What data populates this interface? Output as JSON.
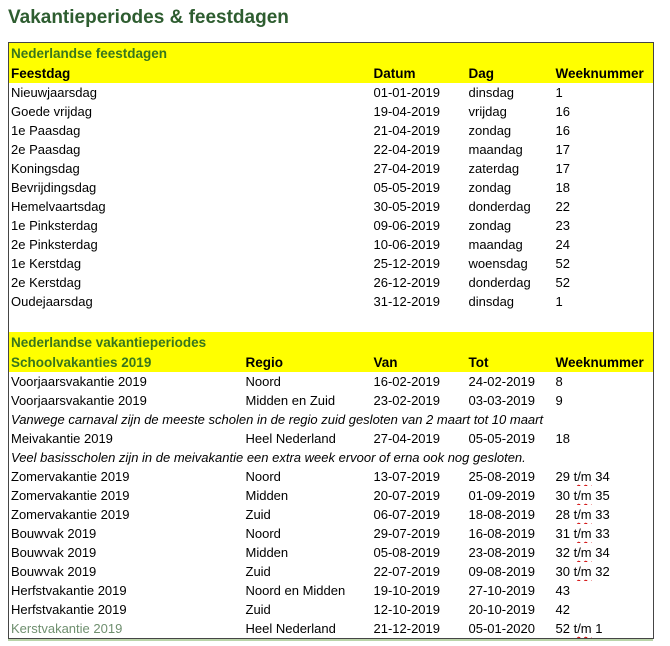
{
  "page_title": "Vakantieperiodes & feestdagen",
  "colors": {
    "title_green": "#2e5d30",
    "section_header_green": "#38761d",
    "header_fill_yellow": "#ffff00",
    "kerstvakantie_text_green": "#6f8f6f",
    "spellcheck_red": "#d00000",
    "table_border": "#454545"
  },
  "feestdagen": {
    "section_title": "Nederlandse feestdagen",
    "headers": {
      "col1": "Feestdag",
      "col2": "Datum",
      "col3": "Dag",
      "col4": "Weeknummer"
    },
    "rows": [
      {
        "feestdag": "Nieuwjaarsdag",
        "datum": "01-01-2019",
        "dag": "dinsdag",
        "week": "1"
      },
      {
        "feestdag": "Goede vrijdag",
        "datum": "19-04-2019",
        "dag": "vrijdag",
        "week": "16"
      },
      {
        "feestdag": "1e Paasdag",
        "datum": "21-04-2019",
        "dag": "zondag",
        "week": "16"
      },
      {
        "feestdag": "2e Paasdag",
        "datum": "22-04-2019",
        "dag": "maandag",
        "week": "17"
      },
      {
        "feestdag": "Koningsdag",
        "datum": "27-04-2019",
        "dag": "zaterdag",
        "week": "17"
      },
      {
        "feestdag": "Bevrijdingsdag",
        "datum": "05-05-2019",
        "dag": "zondag",
        "week": "18"
      },
      {
        "feestdag": "Hemelvaartsdag",
        "datum": "30-05-2019",
        "dag": "donderdag",
        "week": "22"
      },
      {
        "feestdag": "1e Pinksterdag",
        "datum": "09-06-2019",
        "dag": "zondag",
        "week": "23"
      },
      {
        "feestdag": "2e Pinksterdag",
        "datum": "10-06-2019",
        "dag": "maandag",
        "week": "24"
      },
      {
        "feestdag": "1e Kerstdag",
        "datum": "25-12-2019",
        "dag": "woensdag",
        "week": "52"
      },
      {
        "feestdag": "2e Kerstdag",
        "datum": "26-12-2019",
        "dag": "donderdag",
        "week": "52"
      },
      {
        "feestdag": "Oudejaarsdag",
        "datum": "31-12-2019",
        "dag": "dinsdag",
        "week": "1"
      }
    ]
  },
  "vakanties": {
    "section_title": "Nederlandse vakantieperiodes",
    "headers": {
      "col1": "Schoolvakanties 2019",
      "col2": "Regio",
      "col3": "Van",
      "col4": "Tot",
      "col5": "Weeknummer"
    },
    "notes": {
      "carnaval": "Vanwege carnaval zijn de meeste scholen in de regio zuid gesloten van 2 maart tot 10 maart",
      "meivakantie": "Veel basisscholen zijn in de meivakantie een extra week ervoor of erna ook nog gesloten."
    },
    "rows": [
      {
        "naam": "Voorjaarsvakantie 2019",
        "regio": "Noord",
        "van": "16-02-2019",
        "tot": "24-02-2019",
        "week": "8"
      },
      {
        "naam": "Voorjaarsvakantie 2019",
        "regio": "Midden en Zuid",
        "van": "23-02-2019",
        "tot": "03-03-2019",
        "week": "9"
      },
      {
        "naam": "Meivakantie 2019",
        "regio": "Heel Nederland",
        "van": "27-04-2019",
        "tot": "05-05-2019",
        "week": "18"
      },
      {
        "naam": "Zomervakantie 2019",
        "regio": "Noord",
        "van": "13-07-2019",
        "tot": "25-08-2019",
        "week": "29 t/m 34"
      },
      {
        "naam": "Zomervakantie 2019",
        "regio": "Midden",
        "van": "20-07-2019",
        "tot": "01-09-2019",
        "week": "30 t/m 35"
      },
      {
        "naam": "Zomervakantie 2019",
        "regio": "Zuid",
        "van": "06-07-2019",
        "tot": "18-08-2019",
        "week": "28 t/m 33"
      },
      {
        "naam": "Bouwvak 2019",
        "regio": "Noord",
        "van": "29-07-2019",
        "tot": "16-08-2019",
        "week": "31 t/m 33"
      },
      {
        "naam": "Bouwvak 2019",
        "regio": "Midden",
        "van": "05-08-2019",
        "tot": "23-08-2019",
        "week": "32 t/m 34"
      },
      {
        "naam": "Bouwvak 2019",
        "regio": "Zuid",
        "van": "22-07-2019",
        "tot": "09-08-2019",
        "week": "30 t/m 32"
      },
      {
        "naam": "Herfstvakantie 2019",
        "regio": "Noord en Midden",
        "van": "19-10-2019",
        "tot": "27-10-2019",
        "week": "43"
      },
      {
        "naam": "Herfstvakantie 2019",
        "regio": "Zuid",
        "van": "12-10-2019",
        "tot": "20-10-2019",
        "week": "42"
      },
      {
        "naam": "Kerstvakantie 2019",
        "regio": "Heel Nederland",
        "van": "21-12-2019",
        "tot": "05-01-2020",
        "week": "52 t/m 1"
      }
    ]
  }
}
